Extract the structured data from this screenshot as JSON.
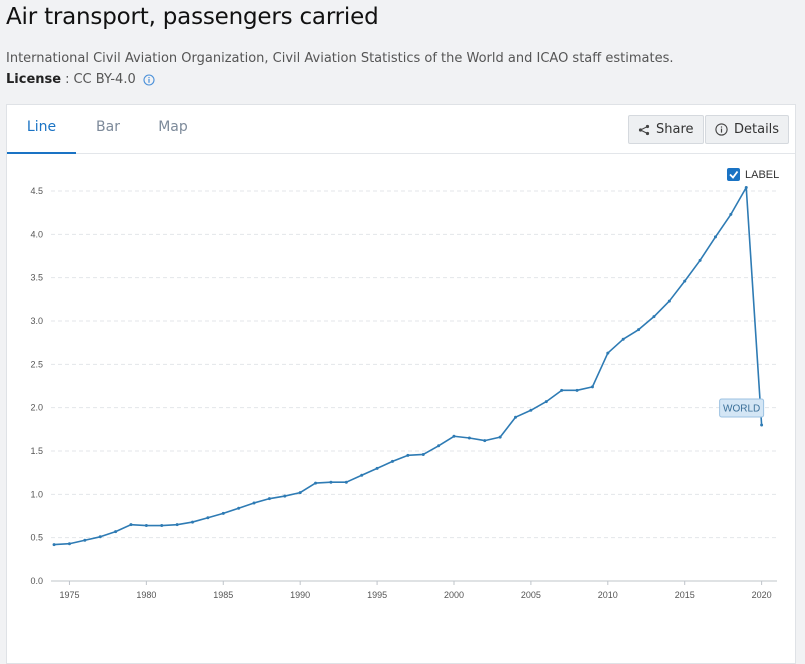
{
  "page": {
    "title": "Air transport, passengers carried",
    "source": "International Civil Aviation Organization, Civil Aviation Statistics of the World and ICAO staff estimates.",
    "license_label": "License",
    "license_sep": ":",
    "license_value": "CC BY-4.0"
  },
  "tabs": [
    {
      "label": "Line",
      "active": true
    },
    {
      "label": "Bar",
      "active": false
    },
    {
      "label": "Map",
      "active": false
    }
  ],
  "toolbar": {
    "share_label": "Share",
    "details_label": "Details"
  },
  "colors": {
    "series": "#2e7bb4",
    "accent": "#1a73c4",
    "series_label_bg": "#d4e6f5"
  },
  "legend": {
    "checkbox_checked": true,
    "checkbox_label": "LABEL"
  },
  "chart_data": {
    "type": "line",
    "title": "",
    "xlabel": "",
    "ylabel": "",
    "xlim": [
      1973.8,
      2021
    ],
    "ylim": [
      0,
      4.5
    ],
    "x_ticks": [
      "1975",
      "1980",
      "1985",
      "1990",
      "1995",
      "2000",
      "2005",
      "2010",
      "2015",
      "2020"
    ],
    "y_ticks": [
      "0.0",
      "0.5",
      "1.0",
      "1.5",
      "2.0",
      "2.5",
      "3.0",
      "3.5",
      "4.0",
      "4.5"
    ],
    "grid": "horizontal dashed",
    "series": [
      {
        "name": "WORLD",
        "x": [
          1974,
          1975,
          1976,
          1977,
          1978,
          1979,
          1980,
          1981,
          1982,
          1983,
          1984,
          1985,
          1986,
          1987,
          1988,
          1989,
          1990,
          1991,
          1992,
          1993,
          1994,
          1995,
          1996,
          1997,
          1998,
          1999,
          2000,
          2001,
          2002,
          2003,
          2004,
          2005,
          2006,
          2007,
          2008,
          2009,
          2010,
          2011,
          2012,
          2013,
          2014,
          2015,
          2016,
          2017,
          2018,
          2019,
          2020
        ],
        "y": [
          0.42,
          0.43,
          0.47,
          0.51,
          0.57,
          0.65,
          0.64,
          0.64,
          0.65,
          0.68,
          0.73,
          0.78,
          0.84,
          0.9,
          0.95,
          0.98,
          1.02,
          1.13,
          1.14,
          1.14,
          1.22,
          1.3,
          1.38,
          1.45,
          1.46,
          1.56,
          1.67,
          1.65,
          1.62,
          1.66,
          1.89,
          1.97,
          2.07,
          2.2,
          2.2,
          2.24,
          2.63,
          2.79,
          2.9,
          3.05,
          3.23,
          3.46,
          3.7,
          3.97,
          4.23,
          4.54,
          1.8
        ]
      }
    ]
  }
}
